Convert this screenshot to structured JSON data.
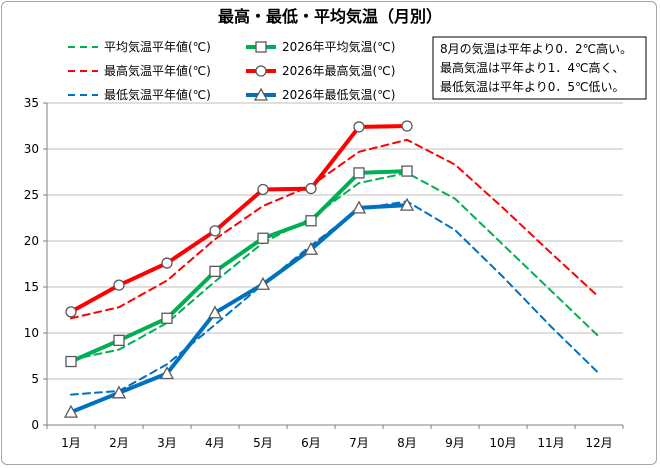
{
  "chart_data": {
    "type": "line",
    "title": "最高・最低・平均気温（月別）",
    "categories": [
      "1月",
      "2月",
      "3月",
      "4月",
      "5月",
      "6月",
      "7月",
      "8月",
      "9月",
      "10月",
      "11月",
      "12月"
    ],
    "ylim": [
      0,
      35
    ],
    "yticks": [
      0,
      5,
      10,
      15,
      20,
      25,
      30,
      35
    ],
    "grid": "horizontal",
    "legend_position": "top",
    "series": [
      {
        "name": "平均気温平年値(℃)",
        "style": "dashed",
        "color": "#00b050",
        "marker": "none",
        "values": [
          7.1,
          8.2,
          11.1,
          15.6,
          19.8,
          22.5,
          26.3,
          27.4,
          24.6,
          19.6,
          14.6,
          9.6
        ]
      },
      {
        "name": "最高気温平年値(℃)",
        "style": "dashed",
        "color": "#ff0000",
        "marker": "none",
        "values": [
          11.6,
          12.8,
          15.7,
          20.2,
          23.8,
          26.0,
          29.7,
          31.0,
          28.3,
          23.6,
          18.7,
          13.9
        ]
      },
      {
        "name": "最低気温平年値(℃)",
        "style": "dashed",
        "color": "#0070c0",
        "marker": "none",
        "values": [
          3.3,
          3.7,
          6.6,
          10.9,
          15.3,
          19.5,
          23.5,
          24.3,
          21.2,
          16.1,
          10.7,
          5.6
        ]
      },
      {
        "name": "2026年平均気温(℃)",
        "style": "solid",
        "color": "#00b050",
        "marker": "square",
        "values": [
          6.9,
          9.2,
          11.6,
          16.7,
          20.3,
          22.2,
          27.4,
          27.6,
          null,
          null,
          null,
          null
        ]
      },
      {
        "name": "2026年最高気温(℃)",
        "style": "solid",
        "color": "#ff0000",
        "marker": "circle",
        "values": [
          12.3,
          15.2,
          17.6,
          21.1,
          25.6,
          25.7,
          32.4,
          32.5,
          null,
          null,
          null,
          null
        ]
      },
      {
        "name": "2026年最低気温(℃)",
        "style": "solid",
        "color": "#0070c0",
        "marker": "triangle",
        "values": [
          1.4,
          3.5,
          5.6,
          12.2,
          15.3,
          19.1,
          23.6,
          23.9,
          null,
          null,
          null,
          null
        ]
      }
    ],
    "annotation_lines": [
      "8月の気温は平年より0．2℃高い。",
      "最高気温は平年より1．4℃高く、",
      "最低気温は平年より0．5℃低い。"
    ]
  }
}
